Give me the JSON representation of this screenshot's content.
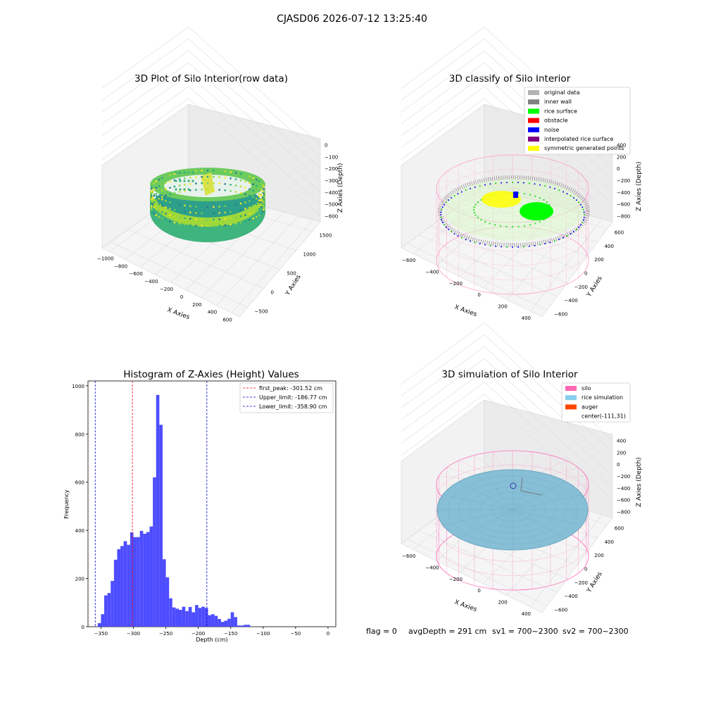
{
  "figure_title": "CJASD06 2026-07-12 13:25:40",
  "chart_data": [
    {
      "type": "scatter",
      "projection": "3d",
      "title": "3D Plot of Silo Interior(row data)",
      "xlabel": "X Axies",
      "ylabel": "Y Axies",
      "zlabel": "Z Axies (Depth)",
      "x_ticks": [
        "−1000",
        "−800",
        "−600",
        "−400",
        "−200",
        "0",
        "200",
        "400",
        "600"
      ],
      "y_ticks": [
        "−500",
        "0",
        "500",
        "1000",
        "1500"
      ],
      "z_ticks": [
        "0",
        "−100",
        "−200",
        "−300",
        "−400",
        "−500",
        "−600"
      ],
      "colormap": "viridis"
    },
    {
      "type": "scatter",
      "projection": "3d",
      "title": "3D classify of Silo Interior",
      "xlabel": "X Axies",
      "ylabel": "Y Axies",
      "zlabel": "Z Axies (Depth)",
      "x_ticks": [
        "−600",
        "−400",
        "−200",
        "0",
        "200",
        "400"
      ],
      "y_ticks": [
        "−600",
        "−400",
        "−200",
        "0",
        "200",
        "400",
        "600"
      ],
      "z_ticks": [
        "400",
        "200",
        "0",
        "−200",
        "−400",
        "−600",
        "−800"
      ],
      "legend": [
        {
          "label": "original data",
          "color": "#b3b3b3"
        },
        {
          "label": "inner wall",
          "color": "#808080"
        },
        {
          "label": "rice surface",
          "color": "#00ff00"
        },
        {
          "label": "obstacle",
          "color": "#ff0000"
        },
        {
          "label": "noise",
          "color": "#0000ff"
        },
        {
          "label": "interpolated rice surface",
          "color": "#800080"
        },
        {
          "label": "symmetric generated points",
          "color": "#ffff00"
        }
      ],
      "legend_position": "top-right"
    },
    {
      "type": "bar",
      "title": "Histogram of Z-Axies (Height) Values",
      "xlabel": "Depth (cm)",
      "ylabel": "Frequency",
      "xlim": [
        -370,
        12
      ],
      "ylim": [
        0,
        1020
      ],
      "x_ticks": [
        -350,
        -300,
        -250,
        -200,
        -150,
        -100,
        -50,
        0
      ],
      "x_tick_labels": [
        "−350",
        "−300",
        "−250",
        "−200",
        "−150",
        "−100",
        "−50",
        "0"
      ],
      "y_ticks": [
        0,
        200,
        400,
        600,
        800,
        1000
      ],
      "bar_color": "#4d4dff",
      "bin_width": 5,
      "bin_start": -355,
      "values": [
        15,
        52,
        130,
        140,
        190,
        278,
        322,
        335,
        355,
        340,
        392,
        372,
        372,
        398,
        386,
        393,
        416,
        620,
        962,
        838,
        280,
        205,
        118,
        80,
        75,
        70,
        83,
        65,
        82,
        60,
        90,
        78,
        83,
        78,
        48,
        52,
        45,
        32,
        20,
        25,
        33,
        60,
        40,
        5,
        5,
        8,
        8
      ],
      "reference_lines": [
        {
          "label": "first_peak: -301.52 cm",
          "x": -301.52,
          "color": "#ff0000"
        },
        {
          "label": "Upper_limit: -186.77 cm",
          "x": -186.77,
          "color": "#0000cc"
        },
        {
          "label": "Lower_limit: -358.90 cm",
          "x": -358.9,
          "color": "#0000cc"
        }
      ],
      "legend_position": "top-right"
    },
    {
      "type": "surface",
      "projection": "3d",
      "title": "3D simulation of Silo Interior",
      "xlabel": "X Axies",
      "ylabel": "Y Axies",
      "zlabel": "Z Axies (Depth)",
      "x_ticks": [
        "−600",
        "−400",
        "−200",
        "0",
        "200",
        "400"
      ],
      "y_ticks": [
        "−600",
        "−400",
        "−200",
        "0",
        "200",
        "400",
        "600"
      ],
      "z_ticks": [
        "400",
        "200",
        "0",
        "−200",
        "−400",
        "−600",
        "−800"
      ],
      "legend": [
        {
          "label": "silo",
          "color": "#ff69b4"
        },
        {
          "label": "rice simulation",
          "color": "#87ceeb"
        },
        {
          "label": "auger",
          "color": "#ff4500"
        },
        {
          "label": "center(-111,31)",
          "color": ""
        }
      ],
      "legend_position": "top-right"
    }
  ],
  "footer": {
    "flag": "flag = 0",
    "avg_depth": "avgDepth = 291 cm",
    "sv1": "sv1 = 700~2300",
    "sv2": "sv2 = 700~2300"
  }
}
